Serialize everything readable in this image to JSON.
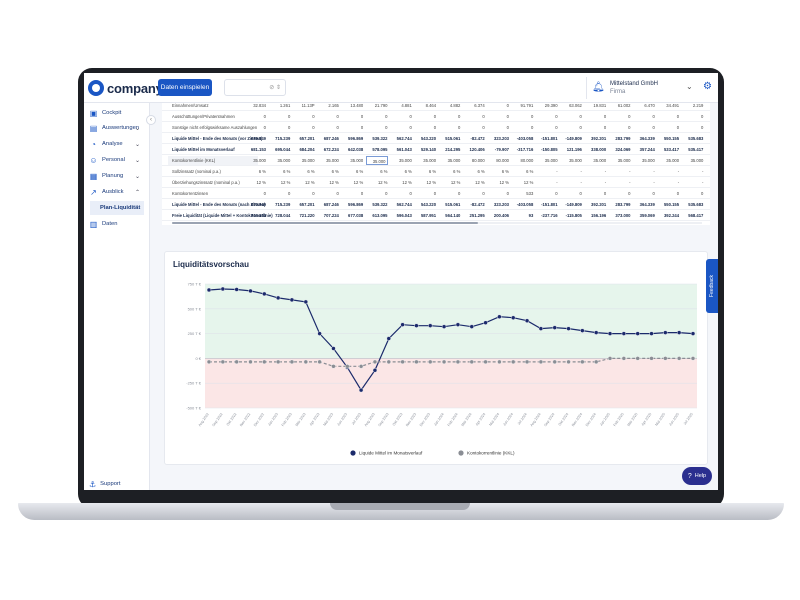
{
  "app": {
    "logo_text": "companyon",
    "primary_button": "Daten einspielen",
    "select_icon": "⊘ ⇕",
    "company_name": "Mittelstand GmbH",
    "company_role": "Firma"
  },
  "sidebar": {
    "items": [
      {
        "label": "Cockpit",
        "icon": "▣",
        "icon_name": "cockpit-icon"
      },
      {
        "label": "Auswertungen",
        "icon": "▤",
        "icon_name": "reports-icon",
        "chevron": "⌄"
      },
      {
        "label": "Analyse",
        "icon": "◔",
        "icon_name": "analysis-icon",
        "chevron": "⌄"
      },
      {
        "label": "Personal",
        "icon": "☺",
        "icon_name": "people-icon",
        "chevron": "⌄"
      },
      {
        "label": "Planung",
        "icon": "▦",
        "icon_name": "planning-icon",
        "chevron": "⌄"
      },
      {
        "label": "Ausblick",
        "icon": "↗",
        "icon_name": "outlook-icon",
        "chevron": "⌃"
      },
      {
        "label": "Plan-Liquidität"
      },
      {
        "label": "Daten",
        "icon": "▥",
        "icon_name": "data-icon"
      }
    ],
    "support_label": "Support"
  },
  "table": {
    "rows": [
      {
        "label": "Einnahmen/Umsatz",
        "bold": false,
        "values": [
          "32.834",
          "1.261",
          "11.13P",
          "2.165",
          "13.480",
          "21.790",
          "4.881",
          "8.464",
          "4.882",
          "6.374",
          "0",
          "91.791",
          "29.390",
          "63.062",
          "19.831",
          "61.002",
          "6.470",
          "34.491",
          "2.219"
        ]
      },
      {
        "label": "Ausschüttungen/Privatentnahmen",
        "bold": false,
        "values": [
          "0",
          "0",
          "0",
          "0",
          "0",
          "0",
          "0",
          "0",
          "0",
          "0",
          "0",
          "0",
          "0",
          "0",
          "0",
          "0",
          "0",
          "0",
          "0"
        ]
      },
      {
        "label": "Sonstige nicht erfolgswirksame Auszahlungen",
        "bold": false,
        "values": [
          "0",
          "0",
          "0",
          "0",
          "0",
          "0",
          "0",
          "0",
          "0",
          "0",
          "0",
          "0",
          "0",
          "0",
          "0",
          "0",
          "0",
          "0",
          "0"
        ]
      },
      {
        "label": "Liquide Mittel - Ende des Monats (vor Zinsen)",
        "bold": true,
        "values": [
          "670.849",
          "715.239",
          "657.201",
          "687.246",
          "596.869",
          "539.322",
          "562.744",
          "543.220",
          "515.061",
          "-82.472",
          "323.203",
          "-403.058",
          "-151.801",
          "-149.809",
          "392.201",
          "283.799",
          "364.339",
          "550.155",
          "535.683"
        ]
      },
      {
        "label": "Liquide Mittel im Monatsverlauf",
        "bold": true,
        "values": [
          "681.153",
          "695.044",
          "684.204",
          "672.224",
          "642.038",
          "578.095",
          "561.043",
          "529.140",
          "214.295",
          "120.406",
          "-79.907",
          "-317.716",
          "-150.805",
          "121.196",
          "338.000",
          "324.069",
          "357.244",
          "533.417",
          "535.417"
        ]
      },
      {
        "label": "Kontokorrentlinie (KKL)",
        "bold": false,
        "input": true,
        "boxed_index": 5,
        "values": [
          "35.000",
          "35.000",
          "35.000",
          "35.000",
          "35.000",
          "35.000",
          "35.000",
          "35.000",
          "35.000",
          "80.000",
          "80.000",
          "80.000",
          "35.000",
          "35.000",
          "35.000",
          "35.000",
          "35.000",
          "35.000",
          "35.000"
        ]
      },
      {
        "label": "Sollzinssatz (nominal p.a.)",
        "bold": false,
        "values": [
          "6 %",
          "6 %",
          "6 %",
          "6 %",
          "6 %",
          "6 %",
          "6 %",
          "6 %",
          "6 %",
          "6 %",
          "6 %",
          "6 %",
          "-",
          "-",
          "-",
          "-",
          "-",
          "-",
          "-"
        ]
      },
      {
        "label": "Überziehungszinssatz (nominal p.a.)",
        "bold": false,
        "values": [
          "12 %",
          "12 %",
          "12 %",
          "12 %",
          "12 %",
          "12 %",
          "12 %",
          "12 %",
          "12 %",
          "12 %",
          "12 %",
          "12 %",
          "-",
          "-",
          "-",
          "-",
          "-",
          "-",
          "-"
        ]
      },
      {
        "label": "Kontokorrentzinsen",
        "bold": false,
        "values": [
          "0",
          "0",
          "0",
          "0",
          "0",
          "0",
          "0",
          "0",
          "0",
          "0",
          "0",
          "533",
          "0",
          "0",
          "0",
          "0",
          "0",
          "0",
          "0"
        ]
      },
      {
        "label": "Liquide Mittel - Ende des Monats (nach Zinsen)",
        "bold": true,
        "values": [
          "670.849",
          "715.239",
          "657.201",
          "687.246",
          "596.869",
          "539.322",
          "562.744",
          "543.220",
          "515.061",
          "-82.472",
          "323.203",
          "-403.058",
          "-151.801",
          "-149.809",
          "392.201",
          "283.799",
          "364.339",
          "550.155",
          "535.683"
        ]
      },
      {
        "label": "Freie Liquidität (Liquide Mittel + Kontokorrentlinie)",
        "bold": true,
        "values": [
          "716.153",
          "728.044",
          "721.220",
          "707.224",
          "677.038",
          "613.095",
          "596.043",
          "587.951",
          "564.140",
          "251.295",
          "200.406",
          "93",
          "-237.716",
          "-115.805",
          "156.196",
          "373.000",
          "359.069",
          "392.244",
          "568.417"
        ]
      }
    ]
  },
  "chart": {
    "title": "Liquiditätsvorschau",
    "feedback_label": "Feedback",
    "help_label": "Help",
    "help_icon": "?"
  },
  "chart_data": {
    "type": "line",
    "title": "Liquiditätsvorschau",
    "x": [
      "Aug 2022",
      "Sep 2022",
      "Okt 2022",
      "Nov 2022",
      "Dez 2022",
      "Jan 2023",
      "Feb 2023",
      "Mär 2023",
      "Apr 2023",
      "Mai 2023",
      "Jun 2023",
      "Jul 2023",
      "Aug 2023",
      "Sep 2023",
      "Okt 2023",
      "Nov 2023",
      "Dez 2023",
      "Jan 2024",
      "Feb 2024",
      "Mär 2024",
      "Apr 2024",
      "Mai 2024",
      "Jun 2024",
      "Jul 2024",
      "Aug 2024",
      "Sep 2024",
      "Okt 2024",
      "Nov 2024",
      "Dez 2024",
      "Jan 2025",
      "Feb 2025",
      "Mär 2025",
      "Apr 2025",
      "Mai 2025",
      "Jun 2025",
      "Jul 2025"
    ],
    "y_ticks": [
      "750 T €",
      "500 T €",
      "250 T €",
      "0 €",
      "-250 T €",
      "-500 T €"
    ],
    "ylim": [
      -500000,
      750000
    ],
    "zones": {
      "positive_color": "#e6f5ec",
      "negative_color": "#fbe6e6"
    },
    "series": [
      {
        "name": "Liquide Mittel im Monatsverlauf",
        "color": "#1b2a6b",
        "dashed": false,
        "values": [
          690000,
          700000,
          695000,
          680000,
          650000,
          610000,
          590000,
          570000,
          250000,
          100000,
          -90000,
          -320000,
          -120000,
          200000,
          340000,
          330000,
          330000,
          320000,
          340000,
          320000,
          360000,
          420000,
          410000,
          380000,
          300000,
          310000,
          300000,
          280000,
          260000,
          250000,
          250000,
          250000,
          250000,
          260000,
          260000,
          250000
        ]
      },
      {
        "name": "Kontokorrentlinie (KKL)",
        "color": "#8a8d94",
        "dashed": true,
        "values": [
          -35000,
          -35000,
          -35000,
          -35000,
          -35000,
          -35000,
          -35000,
          -35000,
          -35000,
          -80000,
          -80000,
          -80000,
          -35000,
          -35000,
          -35000,
          -35000,
          -35000,
          -35000,
          -35000,
          -35000,
          -35000,
          -35000,
          -35000,
          -35000,
          -35000,
          -35000,
          -35000,
          -35000,
          -35000,
          0,
          0,
          0,
          0,
          0,
          0,
          0
        ]
      }
    ],
    "legend_position": "bottom"
  }
}
